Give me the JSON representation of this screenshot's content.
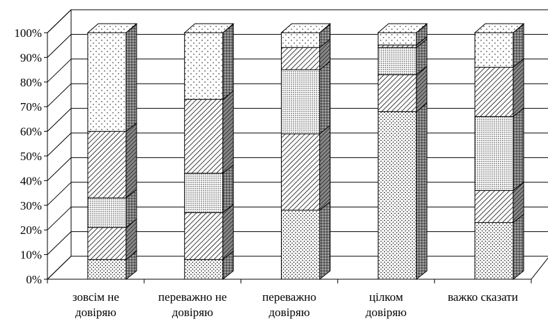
{
  "chart_data": {
    "type": "bar",
    "stacked": true,
    "percent": true,
    "three_d": true,
    "title": "",
    "xlabel": "",
    "ylabel": "",
    "ylim": [
      0,
      100
    ],
    "yticks": [
      "0%",
      "10%",
      "20%",
      "30%",
      "40%",
      "50%",
      "60%",
      "70%",
      "80%",
      "90%",
      "100%"
    ],
    "grid": true,
    "legend": "none",
    "categories": [
      [
        "зовсім не",
        "довіряю"
      ],
      [
        "переважно не",
        "довіряю"
      ],
      [
        "переважно",
        "довіряю"
      ],
      [
        "цілком",
        "довіряю"
      ],
      [
        "важко сказати"
      ]
    ],
    "series": [
      {
        "pattern": "fine-dots",
        "values": [
          8,
          8,
          28,
          68,
          23
        ]
      },
      {
        "pattern": "diagonal-hatch",
        "values": [
          13,
          19,
          31,
          15,
          13
        ]
      },
      {
        "pattern": "dense-dots",
        "values": [
          12,
          16,
          26,
          11,
          30
        ]
      },
      {
        "pattern": "diagonal-hatch",
        "values": [
          27,
          30,
          9,
          1,
          20
        ]
      },
      {
        "pattern": "sparse-dots",
        "values": [
          40,
          27,
          6,
          5,
          14
        ]
      }
    ]
  }
}
